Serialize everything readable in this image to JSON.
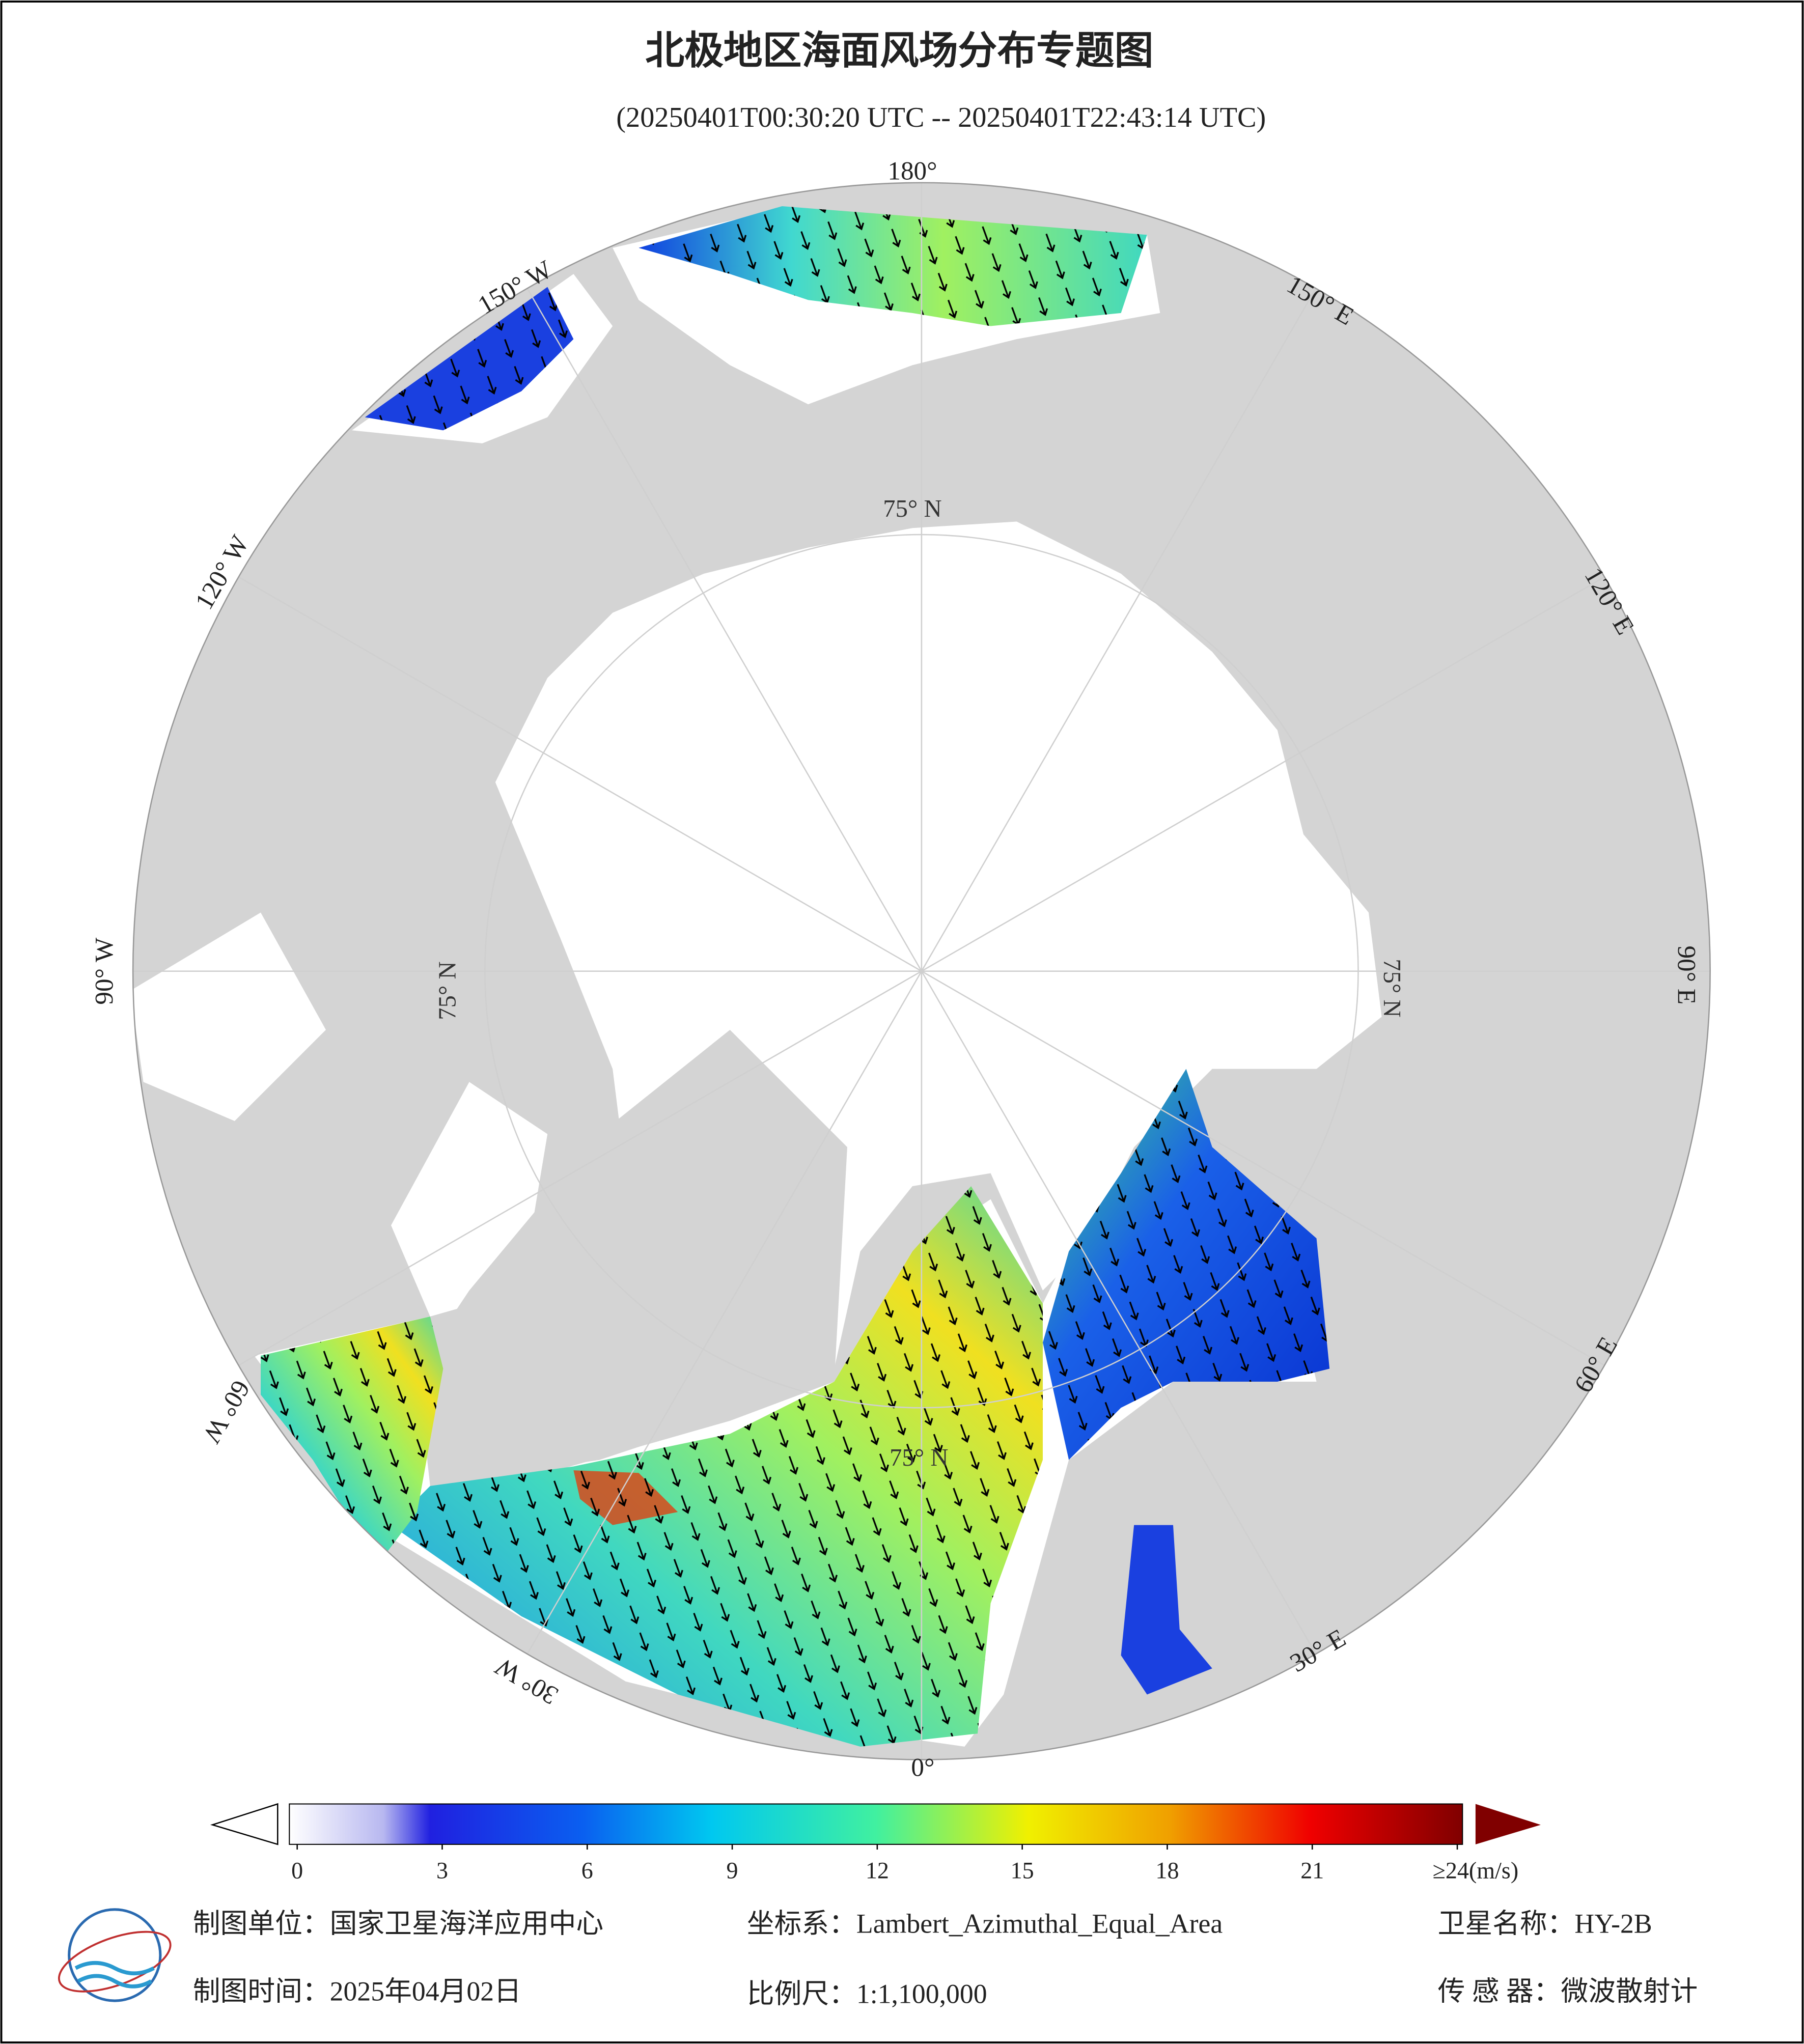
{
  "header": {
    "title": "北极地区海面风场分布专题图",
    "subtitle": "(20250401T00:30:20 UTC -- 20250401T22:43:14 UTC)"
  },
  "map": {
    "lon_labels": [
      "180°",
      "150° E",
      "120° E",
      "90° E",
      "60° E",
      "30° E",
      "0°",
      "30° W",
      "60° W",
      "90° W",
      "120° W",
      "150° W"
    ],
    "lat_label": "75° N"
  },
  "colorbar": {
    "range": [
      0,
      24
    ],
    "ticks": [
      0,
      3,
      6,
      9,
      12,
      15,
      18,
      21,
      {
        "value": 24,
        "label": "≥24(m/s)"
      }
    ]
  },
  "footer": {
    "unit": "制图单位：国家卫星海洋应用中心",
    "date": "制图时间：2025年04月02日",
    "crs": "坐标系：Lambert_Azimuthal_Equal_Area",
    "scale": "比例尺：1:1,100,000",
    "satellite": "卫星名称：HY-2B",
    "sensor": "传 感 器：微波散射计"
  }
}
